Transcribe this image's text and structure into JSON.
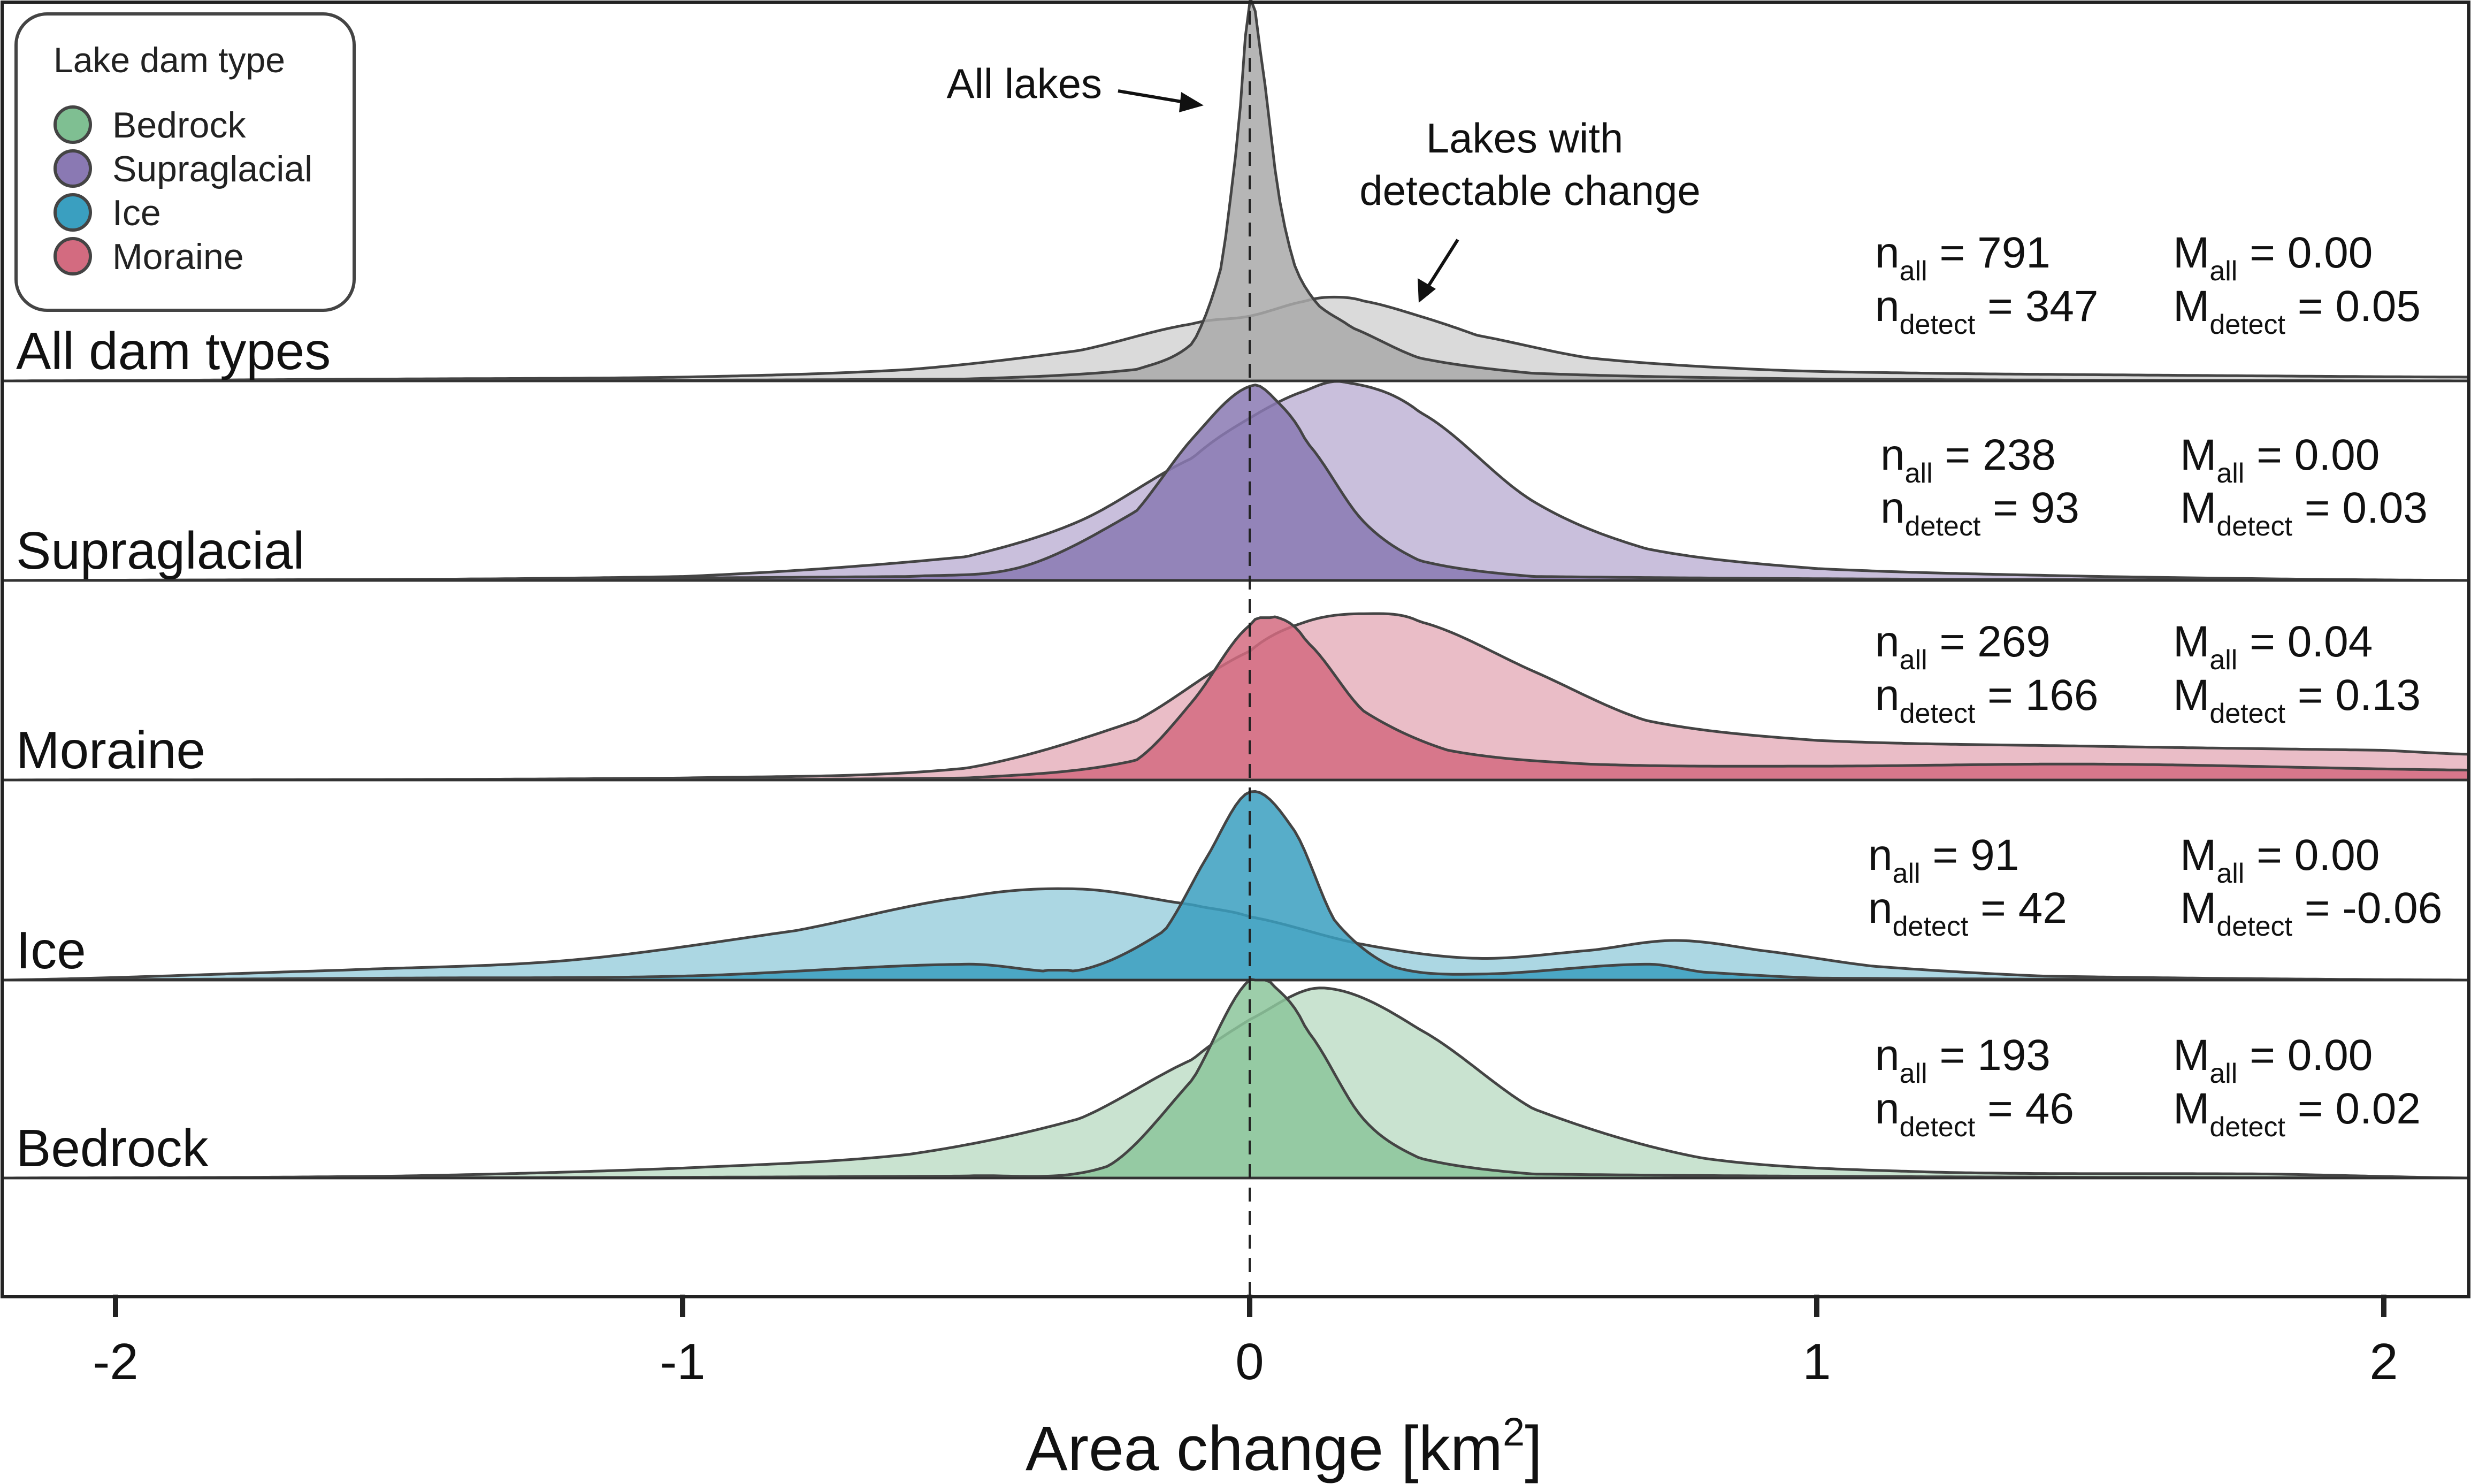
{
  "chart_data": {
    "type": "area",
    "xlabel": "Area change [km²]",
    "xlabel_parts": {
      "main": "Area change [km",
      "sup": "2",
      "end": "]"
    },
    "xlim": [
      -2.2,
      2.15
    ],
    "xticks": [
      -2,
      -1,
      0,
      1,
      2
    ],
    "tick_labels": [
      "-2",
      "-1",
      "0",
      "1",
      "2"
    ],
    "reference_line_x": 0,
    "legend": {
      "title": "Lake dam type",
      "placement": "top-left",
      "items": [
        {
          "label": "Bedrock",
          "color": "#7fbf92"
        },
        {
          "label": "Supraglacial",
          "color": "#8a79b3"
        },
        {
          "label": "Ice",
          "color": "#3a9fc0"
        },
        {
          "label": "Moraine",
          "color": "#d36b80"
        }
      ]
    },
    "annotations": {
      "all_lakes": "All lakes",
      "detect_line1": "Lakes with",
      "detect_line2": "detectable change"
    },
    "rows": [
      {
        "label": "All dam types",
        "fill_all": "#a9a9a9",
        "fill_detect": "#d6d6d6",
        "stats": {
          "n_all": "791",
          "n_detect": "347",
          "M_all": "0.00",
          "M_detect": "0.05"
        },
        "all": {
          "x": [
            -2.2,
            -0.5,
            -0.2,
            -0.1,
            -0.05,
            -0.02,
            0,
            0.02,
            0.05,
            0.08,
            0.12,
            0.18,
            0.3,
            0.5,
            1.0,
            2.15
          ],
          "y": [
            0,
            0.005,
            0.03,
            0.1,
            0.3,
            0.65,
            1.0,
            0.85,
            0.5,
            0.3,
            0.2,
            0.14,
            0.06,
            0.02,
            0.005,
            0
          ]
        },
        "detect": {
          "x": [
            -2.2,
            -1.5,
            -1.0,
            -0.6,
            -0.3,
            -0.1,
            0,
            0.1,
            0.15,
            0.2,
            0.3,
            0.4,
            0.6,
            0.9,
            1.2,
            1.6,
            2.15
          ],
          "y": [
            0,
            0.005,
            0.01,
            0.03,
            0.08,
            0.15,
            0.17,
            0.21,
            0.22,
            0.21,
            0.17,
            0.12,
            0.06,
            0.03,
            0.02,
            0.015,
            0.01
          ]
        }
      },
      {
        "label": "Supraglacial",
        "fill_all": "#8a79b3",
        "fill_detect": "#c3b8d8",
        "stats": {
          "n_all": "238",
          "n_detect": "93",
          "M_all": "0.00",
          "M_detect": "0.03"
        },
        "all": {
          "x": [
            -2.2,
            -0.6,
            -0.4,
            -0.2,
            -0.1,
            0,
            0.05,
            0.1,
            0.2,
            0.3,
            0.5,
            2.15
          ],
          "y": [
            0,
            0.02,
            0.07,
            0.35,
            0.72,
            0.98,
            0.9,
            0.7,
            0.3,
            0.1,
            0.02,
            0
          ]
        },
        "detect": {
          "x": [
            -2.2,
            -1.0,
            -0.5,
            -0.3,
            -0.1,
            0,
            0.1,
            0.17,
            0.3,
            0.5,
            0.7,
            1.0,
            1.5,
            2.15
          ],
          "y": [
            0,
            0.02,
            0.12,
            0.3,
            0.62,
            0.82,
            0.96,
            1.0,
            0.85,
            0.4,
            0.16,
            0.06,
            0.02,
            0
          ]
        }
      },
      {
        "label": "Moraine",
        "fill_all": "#d36b80",
        "fill_detect": "#e8b6c1",
        "stats": {
          "n_all": "269",
          "n_detect": "166",
          "M_all": "0.04",
          "M_detect": "0.13"
        },
        "all": {
          "x": [
            -2.2,
            -0.5,
            -0.2,
            -0.1,
            0,
            0.05,
            0.1,
            0.2,
            0.35,
            0.6,
            1.0,
            1.5,
            2.15
          ],
          "y": [
            0,
            0.01,
            0.1,
            0.4,
            0.78,
            0.82,
            0.7,
            0.35,
            0.15,
            0.08,
            0.07,
            0.08,
            0.05
          ]
        },
        "detect": {
          "x": [
            -2.2,
            -1.0,
            -0.5,
            -0.2,
            0,
            0.1,
            0.2,
            0.3,
            0.5,
            0.7,
            1.0,
            1.5,
            2.0,
            2.15
          ],
          "y": [
            0,
            0.01,
            0.06,
            0.3,
            0.65,
            0.8,
            0.84,
            0.8,
            0.55,
            0.3,
            0.2,
            0.17,
            0.15,
            0.13
          ]
        }
      },
      {
        "label": "Ice",
        "fill_all": "#3a9fc0",
        "fill_detect": "#a3d3e0",
        "stats": {
          "n_all": "91",
          "n_detect": "42",
          "M_all": "0.00",
          "M_detect": "-0.06"
        },
        "all": {
          "x": [
            -2.2,
            -1.5,
            -1.0,
            -0.5,
            -0.3,
            -0.15,
            -0.08,
            0,
            0.08,
            0.15,
            0.25,
            0.4,
            0.7,
            0.8,
            1.0,
            2.15
          ],
          "y": [
            0,
            0.01,
            0.02,
            0.08,
            0.05,
            0.25,
            0.6,
            0.95,
            0.75,
            0.3,
            0.07,
            0.03,
            0.08,
            0.04,
            0.01,
            0
          ]
        },
        "detect": {
          "x": [
            -2.2,
            -1.6,
            -1.2,
            -0.8,
            -0.5,
            -0.3,
            -0.1,
            0,
            0.2,
            0.4,
            0.6,
            0.75,
            0.9,
            1.1,
            1.4,
            2.15
          ],
          "y": [
            0,
            0.05,
            0.1,
            0.25,
            0.42,
            0.46,
            0.38,
            0.32,
            0.18,
            0.11,
            0.15,
            0.2,
            0.15,
            0.07,
            0.02,
            0
          ]
        }
      },
      {
        "label": "Bedrock",
        "fill_all": "#8cc59b",
        "fill_detect": "#c3e0cb",
        "stats": {
          "n_all": "193",
          "n_detect": "46",
          "M_all": "0.00",
          "M_detect": "0.02"
        },
        "all": {
          "x": [
            -2.2,
            -0.5,
            -0.25,
            -0.1,
            0,
            0.05,
            0.1,
            0.2,
            0.3,
            0.5,
            2.15
          ],
          "y": [
            0,
            0.01,
            0.06,
            0.5,
            1.0,
            0.95,
            0.75,
            0.3,
            0.1,
            0.02,
            0
          ]
        },
        "detect": {
          "x": [
            -2.2,
            -1.5,
            -1.0,
            -0.6,
            -0.3,
            -0.1,
            0,
            0.13,
            0.3,
            0.5,
            0.8,
            1.2,
            1.8,
            2.15
          ],
          "y": [
            0,
            0.01,
            0.05,
            0.12,
            0.3,
            0.6,
            0.8,
            0.96,
            0.75,
            0.35,
            0.1,
            0.03,
            0.02,
            0
          ]
        }
      }
    ]
  }
}
